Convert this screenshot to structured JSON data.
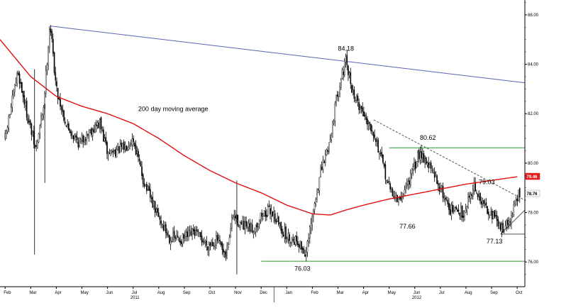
{
  "chart_data": {
    "type": "candlestick",
    "y_ticks": [
      "86.00",
      "84.00",
      "82.00",
      "80.00",
      "78.00",
      "76.00"
    ],
    "ylim": [
      75.0,
      86.6
    ],
    "x_months": [
      {
        "label": "Feb",
        "m": 0
      },
      {
        "label": "Mar",
        "m": 1
      },
      {
        "label": "Apr",
        "m": 2
      },
      {
        "label": "May",
        "m": 3
      },
      {
        "label": "Jun",
        "m": 4
      },
      {
        "label": "Jul",
        "m": 5
      },
      {
        "label": "Aug",
        "m": 6
      },
      {
        "label": "Sep",
        "m": 7
      },
      {
        "label": "Oct",
        "m": 8
      },
      {
        "label": "Nov",
        "m": 9
      },
      {
        "label": "Dec",
        "m": 10
      },
      {
        "label": "Jan",
        "m": 11
      },
      {
        "label": "Feb",
        "m": 12
      },
      {
        "label": "Mar",
        "m": 13
      },
      {
        "label": "Apr",
        "m": 14
      },
      {
        "label": "May",
        "m": 15
      },
      {
        "label": "Jun",
        "m": 16
      },
      {
        "label": "Jul",
        "m": 17
      },
      {
        "label": "Aug",
        "m": 18
      },
      {
        "label": "Sep",
        "m": 19
      },
      {
        "label": "Oct",
        "m": 20
      }
    ],
    "years": [
      {
        "label": "2011",
        "m": 5
      },
      {
        "label": "2012",
        "m": 16
      }
    ],
    "xlim": [
      -0.2,
      20.3
    ],
    "price_anchors": [
      [
        0.0,
        81.0
      ],
      [
        0.5,
        83.7
      ],
      [
        0.85,
        82.0
      ],
      [
        1.2,
        80.5
      ],
      [
        1.5,
        82.3
      ],
      [
        1.75,
        85.7
      ],
      [
        2.0,
        83.0
      ],
      [
        2.4,
        81.5
      ],
      [
        2.9,
        80.8
      ],
      [
        3.3,
        81.3
      ],
      [
        3.7,
        81.6
      ],
      [
        4.0,
        80.4
      ],
      [
        4.6,
        80.6
      ],
      [
        5.0,
        81.0
      ],
      [
        5.4,
        79.3
      ],
      [
        5.9,
        78.0
      ],
      [
        6.4,
        77.0
      ],
      [
        6.9,
        76.9
      ],
      [
        7.4,
        77.2
      ],
      [
        7.9,
        76.7
      ],
      [
        8.3,
        76.9
      ],
      [
        8.6,
        76.1
      ],
      [
        8.9,
        77.9
      ],
      [
        9.3,
        77.4
      ],
      [
        9.7,
        77.3
      ],
      [
        10.0,
        77.9
      ],
      [
        10.4,
        78.1
      ],
      [
        10.7,
        77.5
      ],
      [
        11.0,
        77.0
      ],
      [
        11.4,
        76.9
      ],
      [
        11.75,
        76.3
      ],
      [
        12.0,
        77.8
      ],
      [
        12.3,
        79.5
      ],
      [
        12.7,
        81.0
      ],
      [
        13.0,
        83.0
      ],
      [
        13.3,
        84.1
      ],
      [
        13.6,
        82.8
      ],
      [
        14.0,
        82.0
      ],
      [
        14.4,
        81.3
      ],
      [
        14.7,
        80.1
      ],
      [
        15.0,
        79.0
      ],
      [
        15.4,
        78.4
      ],
      [
        15.6,
        78.9
      ],
      [
        15.9,
        79.6
      ],
      [
        16.2,
        80.5
      ],
      [
        16.6,
        79.8
      ],
      [
        17.0,
        79.0
      ],
      [
        17.4,
        78.1
      ],
      [
        17.9,
        78.0
      ],
      [
        18.3,
        79.1
      ],
      [
        18.6,
        78.4
      ],
      [
        19.0,
        78.0
      ],
      [
        19.35,
        77.35
      ],
      [
        19.7,
        77.6
      ],
      [
        20.0,
        78.6
      ],
      [
        20.1,
        78.8
      ]
    ],
    "ma200_anchors": [
      [
        -0.2,
        85.0
      ],
      [
        1.0,
        83.5
      ],
      [
        2.0,
        82.7
      ],
      [
        3.0,
        82.3
      ],
      [
        4.0,
        82.0
      ],
      [
        5.0,
        81.6
      ],
      [
        6.0,
        81.0
      ],
      [
        7.0,
        80.3
      ],
      [
        8.0,
        79.7
      ],
      [
        9.0,
        79.2
      ],
      [
        10.0,
        78.8
      ],
      [
        11.0,
        78.3
      ],
      [
        12.0,
        77.95
      ],
      [
        12.7,
        77.9
      ],
      [
        13.3,
        78.1
      ],
      [
        14.0,
        78.3
      ],
      [
        15.0,
        78.55
      ],
      [
        16.0,
        78.75
      ],
      [
        17.0,
        78.95
      ],
      [
        18.0,
        79.15
      ],
      [
        19.0,
        79.3
      ],
      [
        20.0,
        79.45
      ]
    ],
    "trendlines": [
      {
        "kind": "resistance",
        "color": "#5a64b4",
        "style": "solid",
        "from": [
          1.75,
          85.55
        ],
        "to": [
          20.3,
          83.25
        ]
      },
      {
        "kind": "descending",
        "color": "#555555",
        "style": "dashed",
        "from": [
          14.4,
          81.75
        ],
        "to": [
          20.3,
          78.5
        ]
      },
      {
        "kind": "support",
        "color": "#555555",
        "style": "solid",
        "from": [
          19.35,
          77.13
        ],
        "to": [
          20.3,
          78.1
        ]
      },
      {
        "kind": "hline",
        "color": "#2a9a2a",
        "style": "solid",
        "from": [
          15.0,
          80.62
        ],
        "to": [
          20.3,
          80.62
        ]
      },
      {
        "kind": "hline",
        "color": "#2a9a2a",
        "style": "solid",
        "from": [
          10.0,
          76.03
        ],
        "to": [
          20.3,
          76.03
        ]
      },
      {
        "kind": "hline",
        "color": "#555555",
        "style": "solid",
        "from": [
          19.35,
          77.13
        ],
        "to": [
          20.3,
          77.13
        ]
      }
    ],
    "annotations": [
      {
        "text": "200 day moving average",
        "x": 5.2,
        "y": 82.1,
        "color": "#ee1111",
        "size": 9
      },
      {
        "text": "84.18",
        "x": 13.0,
        "y": 84.55,
        "color": "#000000",
        "size": 9
      },
      {
        "text": "80.62",
        "x": 16.2,
        "y": 80.95,
        "color": "#000000",
        "size": 9
      },
      {
        "text": "79.03",
        "x": 18.5,
        "y": 79.15,
        "color": "#000000",
        "size": 9
      },
      {
        "text": "77.66",
        "x": 15.4,
        "y": 77.35,
        "color": "#000000",
        "size": 9
      },
      {
        "text": "77.13",
        "x": 18.8,
        "y": 76.75,
        "color": "#000000",
        "size": 9
      },
      {
        "text": "76.03",
        "x": 11.3,
        "y": 75.65,
        "color": "#000000",
        "size": 9
      }
    ],
    "price_tags": [
      {
        "text": "79.46",
        "y": 79.45,
        "bg": "#e21b1b",
        "fg": "#ffffff"
      },
      {
        "text": "78.76",
        "y": 78.76,
        "bg": "#ffffff",
        "fg": "#000000"
      }
    ]
  }
}
